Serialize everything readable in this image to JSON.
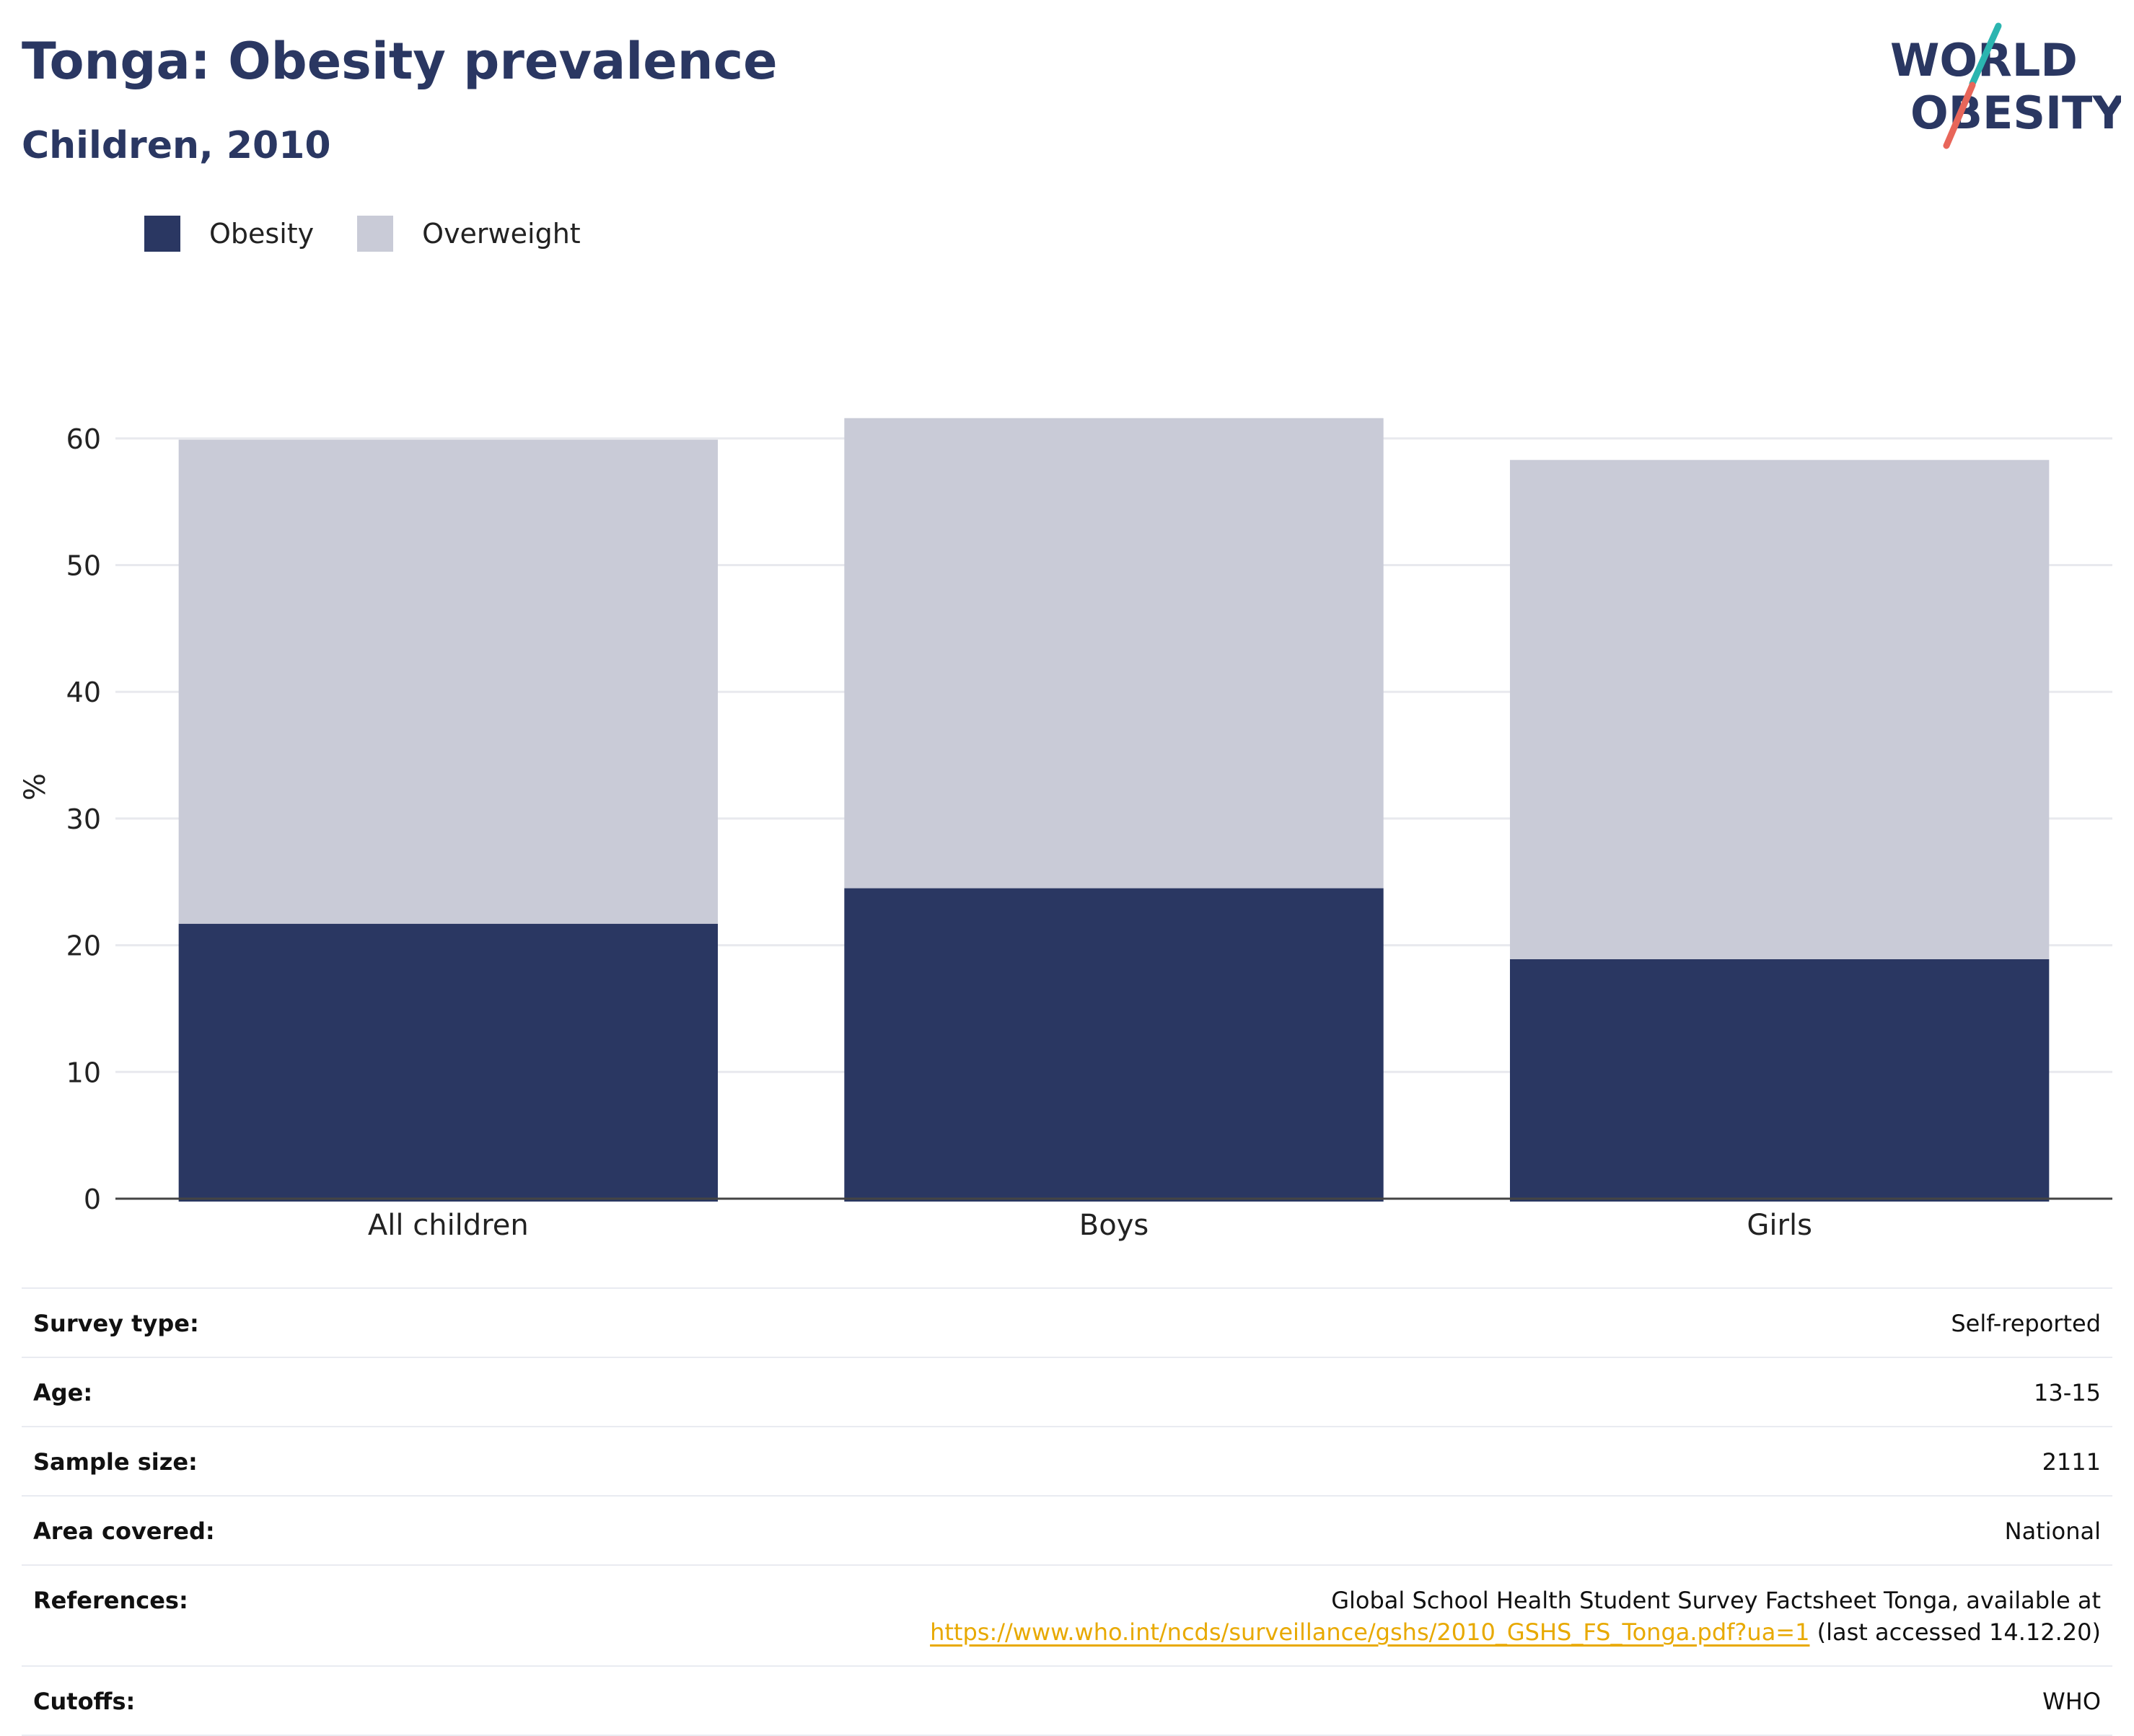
{
  "header": {
    "title": "Tonga: Obesity prevalence",
    "subtitle": "Children, 2010"
  },
  "logo": {
    "line1": "WORLD",
    "line2": "OBESITY",
    "accent_teal": "#2bb5b0",
    "accent_coral": "#e8665a"
  },
  "legend": [
    {
      "label": "Obesity",
      "color": "#2a3762"
    },
    {
      "label": "Overweight",
      "color": "#c9cbd7"
    }
  ],
  "chart_data": {
    "type": "bar",
    "stacked": true,
    "categories": [
      "All children",
      "Boys",
      "Girls"
    ],
    "series": [
      {
        "name": "Obesity",
        "values": [
          21.7,
          24.5,
          18.9
        ],
        "color": "#2a3762"
      },
      {
        "name": "Overweight",
        "values": [
          38.2,
          37.1,
          39.4
        ],
        "color": "#c9cbd7"
      }
    ],
    "ylabel": "%",
    "ylim": [
      0,
      65
    ],
    "yticks": [
      0,
      10,
      20,
      30,
      40,
      50,
      60
    ],
    "grid": true,
    "legend_position": "top-left"
  },
  "info": {
    "rows": [
      {
        "key": "Survey type:",
        "value": "Self-reported"
      },
      {
        "key": "Age:",
        "value": "13-15"
      },
      {
        "key": "Sample size:",
        "value": "2111"
      },
      {
        "key": "Area covered:",
        "value": "National"
      },
      {
        "key": "References:",
        "value_line1": "Global School Health Student Survey Factsheet Tonga, available at",
        "link": "https://www.who.int/ncds/surveillance/gshs/2010_GSHS_FS_Tonga.pdf?ua=1",
        "suffix": " (last accessed 14.12.20)"
      },
      {
        "key": "Cutoffs:",
        "value": "WHO"
      }
    ]
  }
}
